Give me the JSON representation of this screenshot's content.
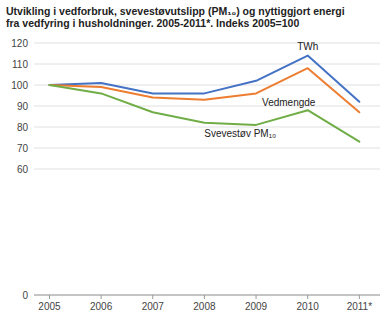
{
  "chart_data": {
    "type": "line",
    "title": "Utvikling i vedforbruk, svevestøvutslipp (PM₁₀) og nyttiggjort energi\nfra vedfyring i husholdninger. 2005-2011*. Indeks 2005=100",
    "x": [
      2005,
      2006,
      2007,
      2008,
      2009,
      2010,
      2011
    ],
    "series": [
      {
        "name": "TWh",
        "color": "#4472C4",
        "values": [
          100,
          101,
          96,
          96,
          102,
          114,
          92
        ]
      },
      {
        "name": "Vedmengde",
        "color": "#ED7D31",
        "values": [
          100,
          99,
          94,
          93,
          96,
          108,
          87
        ]
      },
      {
        "name": "Svevestøv PM₁₀",
        "color": "#70AD47",
        "values": [
          100,
          96,
          87,
          82,
          81,
          88,
          73
        ]
      }
    ],
    "xlim": [
      2004.7,
      2011.4
    ],
    "xticks": [
      2005,
      2006,
      2007,
      2008,
      2009,
      2010,
      {
        "value": 2011,
        "label": "2011*"
      }
    ],
    "ylim": [
      0,
      120
    ],
    "yticks": [
      0,
      60,
      70,
      80,
      90,
      100,
      110,
      120
    ],
    "grid": true
  }
}
